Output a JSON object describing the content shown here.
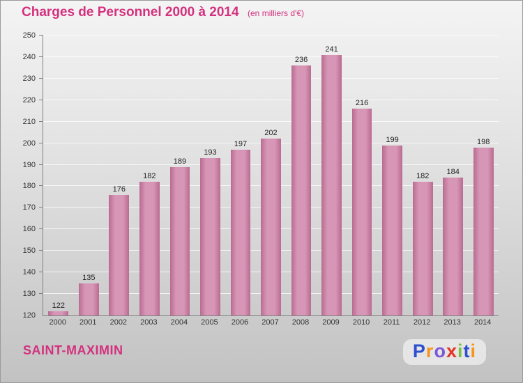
{
  "header": {
    "title": "Charges de Personnel 2000 à 2014",
    "subtitle": "(en milliers d'€)",
    "title_color": "#d4307e"
  },
  "chart_data": {
    "type": "bar",
    "title": "Charges de Personnel 2000 à 2014",
    "unit_note": "(en milliers d'€)",
    "categories": [
      "2000",
      "2001",
      "2002",
      "2003",
      "2004",
      "2005",
      "2006",
      "2007",
      "2008",
      "2009",
      "2010",
      "2011",
      "2012",
      "2013",
      "2014"
    ],
    "values": [
      122,
      135,
      176,
      182,
      189,
      193,
      197,
      202,
      236,
      241,
      216,
      199,
      182,
      184,
      198
    ],
    "ylim": [
      120,
      250
    ],
    "ytick_step": 10,
    "grid": true,
    "legend": "none",
    "bar_color": "#c9799f",
    "bar_color_light": "#d796b5",
    "bar_color_dark": "#b96b92"
  },
  "footer": {
    "city": "SAINT-MAXIMIN",
    "city_color": "#d4307e",
    "logo_letters": [
      {
        "ch": "P",
        "color": "#2f4fd0"
      },
      {
        "ch": "r",
        "color": "#f7941d"
      },
      {
        "ch": "o",
        "color": "#7e57d6"
      },
      {
        "ch": "x",
        "color": "#e63323"
      },
      {
        "ch": "i",
        "color": "#7ac143"
      },
      {
        "ch": "t",
        "color": "#2f4fd0"
      },
      {
        "ch": "i",
        "color": "#f7941d"
      }
    ]
  }
}
